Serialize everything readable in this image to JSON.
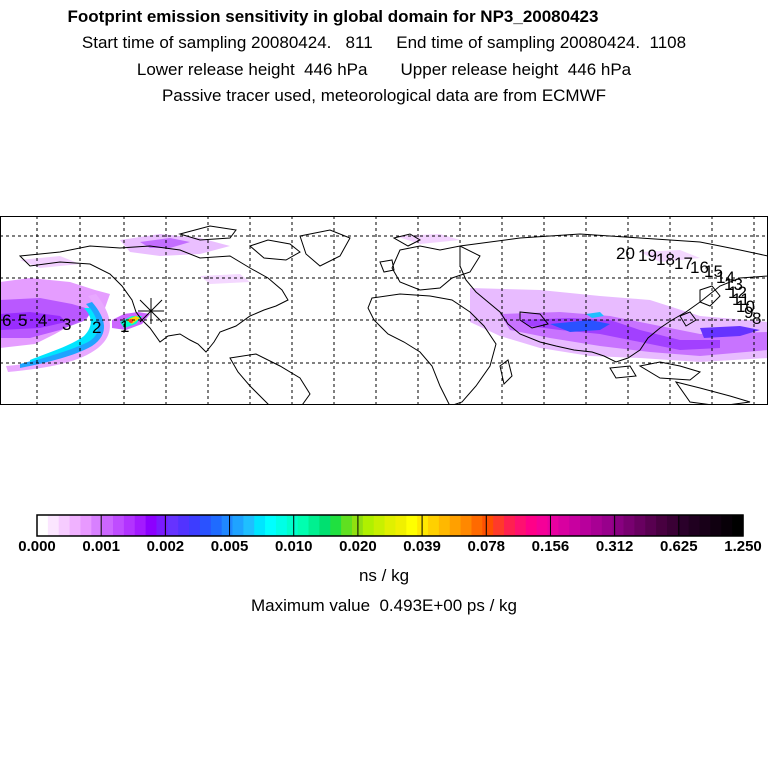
{
  "header": {
    "title": "Footprint emission sensitivity in global domain for NP3_20080423",
    "line2": "Start time of sampling 20080424.   811     End time of sampling 20080424.  1108",
    "line3": "Lower release height  446 hPa       Upper release height  446 hPa",
    "line4": "Passive tracer used, meteorological data are from ECMWF"
  },
  "colorbar": {
    "tick_labels": [
      "0.000",
      "0.001",
      "0.002",
      "0.005",
      "0.010",
      "0.020",
      "0.039",
      "0.078",
      "0.156",
      "0.312",
      "0.625",
      "1.250"
    ],
    "colors": [
      "#ffffff",
      "#fbe6ff",
      "#f6ccff",
      "#f0b2ff",
      "#e899ff",
      "#d880ff",
      "#cc66ff",
      "#bf4cff",
      "#b233ff",
      "#a31aff",
      "#8c00ff",
      "#7a1aff",
      "#6633ff",
      "#5233ff",
      "#3d3dff",
      "#2a52ff",
      "#1f6bff",
      "#1f87ff",
      "#1fa3ff",
      "#1fbfff",
      "#00e5ff",
      "#00ffff",
      "#00ffe6",
      "#00ffcc",
      "#00ffb0",
      "#00f090",
      "#00e070",
      "#20e040",
      "#60e020",
      "#90e010",
      "#b0f000",
      "#c8f000",
      "#e0f000",
      "#f0f000",
      "#ffff00",
      "#ffe800",
      "#ffd000",
      "#ffb800",
      "#ffa000",
      "#ff8800",
      "#ff6a00",
      "#ff5000",
      "#ff3a2a",
      "#ff2050",
      "#ff1070",
      "#ff0088",
      "#f50098",
      "#e800a0",
      "#d800a0",
      "#c800a0",
      "#b8009c",
      "#a80094",
      "#98008c",
      "#880080",
      "#780070",
      "#680060",
      "#580050",
      "#480040",
      "#3a0035",
      "#2a002a",
      "#200020",
      "#180018",
      "#100010",
      "#080008",
      "#000000"
    ],
    "unit": "ns / kg"
  },
  "max_value_text": "Maximum value  0.493E+00 ps / kg",
  "trajectory_labels": [
    "6",
    "5",
    "4",
    "3",
    "2",
    "1",
    "20",
    "19",
    "18",
    "17",
    "16",
    "15",
    "14",
    "13",
    "12",
    "11",
    "10",
    "9",
    "8"
  ]
}
